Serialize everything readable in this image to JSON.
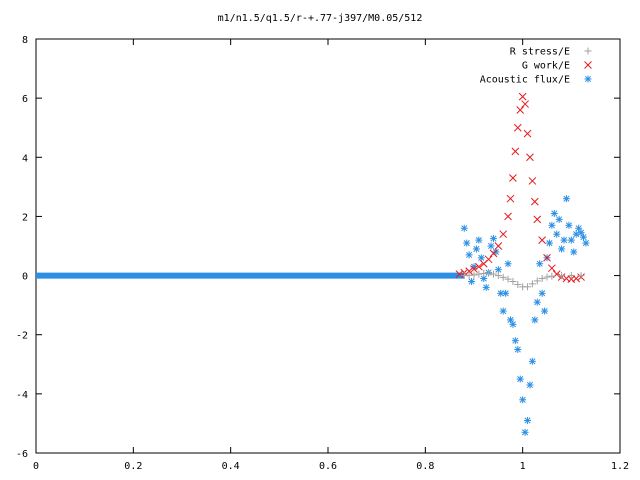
{
  "chart_data": {
    "type": "scatter",
    "title": "m1/n1.5/q1.5/r-+.77-j397/M0.05/512",
    "xlabel": "",
    "ylabel": "",
    "xlim": [
      0,
      1.2
    ],
    "ylim": [
      -6,
      8
    ],
    "x_ticks": [
      "0",
      "0.2",
      "0.4",
      "0.6",
      "0.8",
      "1",
      "1.2"
    ],
    "y_ticks": [
      "8",
      "6",
      "4",
      "2",
      "0",
      "-2",
      "-4",
      "-6"
    ],
    "grid": false,
    "legend_position": "top-right",
    "series": [
      {
        "name": "R stress/E",
        "marker": "plus",
        "color": "#a0a0a0",
        "points": [
          [
            0.88,
            0.0
          ],
          [
            0.89,
            0.01
          ],
          [
            0.9,
            0.02
          ],
          [
            0.91,
            0.05
          ],
          [
            0.92,
            0.07
          ],
          [
            0.93,
            0.08
          ],
          [
            0.94,
            0.05
          ],
          [
            0.95,
            0.0
          ],
          [
            0.96,
            -0.06
          ],
          [
            0.97,
            -0.12
          ],
          [
            0.98,
            -0.2
          ],
          [
            0.99,
            -0.3
          ],
          [
            1.0,
            -0.38
          ],
          [
            1.01,
            -0.38
          ],
          [
            1.02,
            -0.28
          ],
          [
            1.03,
            -0.18
          ],
          [
            1.04,
            -0.1
          ],
          [
            1.05,
            -0.05
          ],
          [
            1.06,
            -0.02
          ],
          [
            1.08,
            0.0
          ],
          [
            1.1,
            0.0
          ],
          [
            1.12,
            0.0
          ]
        ]
      },
      {
        "name": "G work/E",
        "marker": "cross",
        "color": "#e8191b",
        "points": [
          [
            0.87,
            0.05
          ],
          [
            0.88,
            0.1
          ],
          [
            0.89,
            0.15
          ],
          [
            0.9,
            0.22
          ],
          [
            0.91,
            0.3
          ],
          [
            0.92,
            0.4
          ],
          [
            0.93,
            0.55
          ],
          [
            0.94,
            0.75
          ],
          [
            0.95,
            1.0
          ],
          [
            0.96,
            1.4
          ],
          [
            0.97,
            2.0
          ],
          [
            0.975,
            2.6
          ],
          [
            0.98,
            3.3
          ],
          [
            0.985,
            4.2
          ],
          [
            0.99,
            5.0
          ],
          [
            0.995,
            5.6
          ],
          [
            1.0,
            6.05
          ],
          [
            1.005,
            5.8
          ],
          [
            1.01,
            4.8
          ],
          [
            1.015,
            4.0
          ],
          [
            1.02,
            3.2
          ],
          [
            1.025,
            2.5
          ],
          [
            1.03,
            1.9
          ],
          [
            1.04,
            1.2
          ],
          [
            1.05,
            0.6
          ],
          [
            1.06,
            0.25
          ],
          [
            1.07,
            0.05
          ],
          [
            1.08,
            -0.05
          ],
          [
            1.09,
            -0.1
          ],
          [
            1.1,
            -0.12
          ],
          [
            1.11,
            -0.1
          ],
          [
            1.12,
            -0.05
          ]
        ]
      },
      {
        "name": "Acoustic flux/E",
        "marker": "star",
        "color": "#2b8fe6",
        "points": [
          [
            0.88,
            1.6
          ],
          [
            0.885,
            1.1
          ],
          [
            0.89,
            0.7
          ],
          [
            0.895,
            -0.2
          ],
          [
            0.9,
            0.3
          ],
          [
            0.905,
            0.9
          ],
          [
            0.91,
            1.2
          ],
          [
            0.915,
            0.6
          ],
          [
            0.92,
            -0.1
          ],
          [
            0.925,
            -0.4
          ],
          [
            0.93,
            0.1
          ],
          [
            0.935,
            1.0
          ],
          [
            0.94,
            1.25
          ],
          [
            0.945,
            0.8
          ],
          [
            0.95,
            0.2
          ],
          [
            0.955,
            -0.6
          ],
          [
            0.96,
            -1.2
          ],
          [
            0.965,
            -0.6
          ],
          [
            0.97,
            0.4
          ],
          [
            0.975,
            -1.5
          ],
          [
            0.98,
            -1.65
          ],
          [
            0.985,
            -2.2
          ],
          [
            0.99,
            -2.5
          ],
          [
            0.995,
            -3.5
          ],
          [
            1.0,
            -4.2
          ],
          [
            1.005,
            -5.3
          ],
          [
            1.01,
            -4.9
          ],
          [
            1.015,
            -3.7
          ],
          [
            1.02,
            -2.9
          ],
          [
            1.025,
            -1.5
          ],
          [
            1.03,
            -0.9
          ],
          [
            1.035,
            0.4
          ],
          [
            1.04,
            -0.6
          ],
          [
            1.045,
            -1.2
          ],
          [
            1.05,
            0.6
          ],
          [
            1.055,
            1.1
          ],
          [
            1.06,
            1.7
          ],
          [
            1.065,
            2.1
          ],
          [
            1.07,
            1.4
          ],
          [
            1.075,
            1.9
          ],
          [
            1.08,
            0.9
          ],
          [
            1.085,
            1.2
          ],
          [
            1.09,
            2.6
          ],
          [
            1.095,
            1.7
          ],
          [
            1.1,
            1.2
          ],
          [
            1.105,
            0.8
          ],
          [
            1.11,
            1.4
          ],
          [
            1.115,
            1.6
          ],
          [
            1.12,
            1.45
          ],
          [
            1.125,
            1.3
          ],
          [
            1.13,
            1.1
          ]
        ]
      }
    ]
  }
}
